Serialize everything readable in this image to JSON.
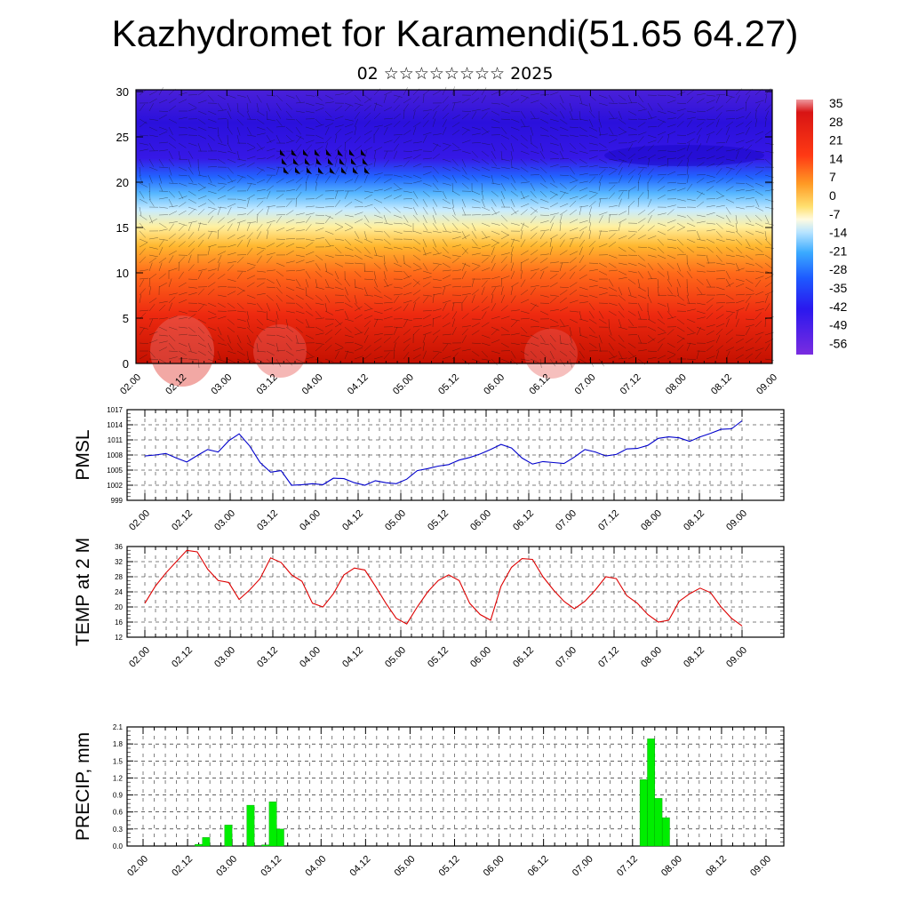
{
  "title": "Kazhydromet for Karamendi(51.65 64.27)",
  "subtitle": "02 ☆☆☆☆☆☆☆☆ 2025",
  "time_labels": [
    "02.00",
    "02.12",
    "03.00",
    "03.12",
    "04.00",
    "04.12",
    "05.00",
    "05.12",
    "06.00",
    "06.12",
    "07.00",
    "07.12",
    "08.00",
    "08.12",
    "09.00"
  ],
  "colors": {
    "pmsl": "#0000cc",
    "temp": "#dd0000",
    "precip": "#00ee00",
    "axis": "#000000",
    "grid": "#000000"
  },
  "chart_data": [
    {
      "type": "heatmap",
      "name": "temperature-height-section",
      "y_ticks": [
        "0",
        "5",
        "10",
        "15",
        "20",
        "25",
        "30"
      ],
      "ylim": [
        0,
        30
      ],
      "colorbar_labels": [
        "35",
        "28",
        "21",
        "14",
        "7",
        "0",
        "-7",
        "-14",
        "-21",
        "-28",
        "-35",
        "-42",
        "-49",
        "-56"
      ],
      "colorbar_range": [
        -60,
        38
      ],
      "wind_barbs": true
    },
    {
      "type": "line",
      "ylabel": "PMSL",
      "ylim": [
        999,
        1017
      ],
      "y_ticks": [
        "1017",
        "1014",
        "1011",
        "1008",
        "1005",
        "1002",
        "999"
      ],
      "values": [
        1007.8,
        1008.0,
        1008.3,
        1007.4,
        1006.6,
        1007.9,
        1009.1,
        1008.6,
        1010.8,
        1012.2,
        1009.8,
        1006.5,
        1004.6,
        1004.9,
        1002.0,
        1002.1,
        1002.3,
        1002.1,
        1003.4,
        1003.3,
        1002.5,
        1002.0,
        1002.9,
        1002.5,
        1002.3,
        1003.2,
        1004.9,
        1005.3,
        1005.8,
        1006.1,
        1007.0,
        1007.5,
        1008.2,
        1009.1,
        1010.1,
        1009.4,
        1007.4,
        1006.2,
        1006.7,
        1006.5,
        1006.3,
        1007.6,
        1009.1,
        1008.6,
        1007.8,
        1008.1,
        1009.2,
        1009.3,
        1009.9,
        1011.3,
        1011.6,
        1011.4,
        1010.7,
        1011.6,
        1012.3,
        1013.1,
        1013.2,
        1014.8
      ]
    },
    {
      "type": "line",
      "ylabel": "TEMP at 2 M",
      "ylim": [
        12,
        36
      ],
      "y_ticks": [
        "36",
        "32",
        "28",
        "24",
        "20",
        "16",
        "12"
      ],
      "values": [
        21.0,
        25.5,
        29.0,
        32.0,
        35.0,
        34.6,
        30.0,
        27.0,
        26.5,
        22.0,
        24.5,
        27.5,
        33.0,
        31.8,
        28.5,
        26.8,
        21.0,
        20.0,
        23.5,
        28.5,
        30.3,
        29.8,
        25.5,
        21.0,
        17.0,
        15.5,
        20.0,
        24.0,
        27.0,
        28.5,
        27.0,
        21.0,
        18.0,
        16.5,
        25.5,
        30.5,
        32.8,
        32.6,
        28.0,
        24.5,
        21.5,
        19.5,
        21.5,
        24.5,
        28.0,
        27.5,
        23.0,
        21.0,
        18.0,
        16.0,
        16.5,
        21.5,
        23.5,
        25.0,
        23.8,
        20.0,
        17.0,
        15.0
      ]
    },
    {
      "type": "bar",
      "ylabel": "PRECIP, mm",
      "ylim": [
        0,
        2.1
      ],
      "y_ticks": [
        "2.1",
        "1.8",
        "1.5",
        "1.2",
        "0.9",
        "0.6",
        "0.3",
        "0.0"
      ],
      "bars": [
        {
          "t": 14,
          "value": 0.03
        },
        {
          "t": 16,
          "value": 0.15
        },
        {
          "t": 22,
          "value": 0.37
        },
        {
          "t": 28,
          "value": 0.72
        },
        {
          "t": 32,
          "value": 0.02
        },
        {
          "t": 34,
          "value": 0.78
        },
        {
          "t": 36,
          "value": 0.3
        },
        {
          "t": 134,
          "value": 1.17
        },
        {
          "t": 136,
          "value": 1.89
        },
        {
          "t": 138,
          "value": 0.84
        },
        {
          "t": 140,
          "value": 0.5
        }
      ]
    }
  ]
}
